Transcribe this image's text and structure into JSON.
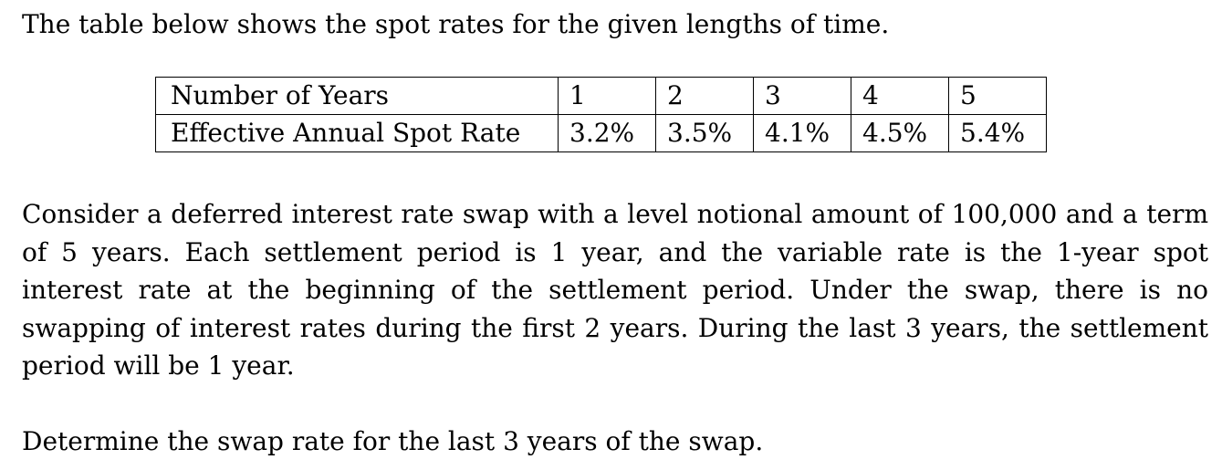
{
  "intro": "The table below shows the spot rates for the given lengths of time.",
  "table": {
    "row_years_label": "Number of Years",
    "years": [
      "1",
      "2",
      "3",
      "4",
      "5"
    ],
    "row_rates_label": "Effective Annual Spot Rate",
    "rates": [
      "3.2%",
      "3.5%",
      "4.1%",
      "4.5%",
      "5.4%"
    ]
  },
  "scenario": "Consider a deferred interest rate swap with a level notional amount of 100,000 and a term of 5 years. Each settlement period is 1 year, and the variable rate is the 1-year spot interest rate at the beginning of the settlement period. Under the swap, there is no swapping of interest rates during the first 2 years. During the last 3 years, the settlement period will be 1 year.",
  "question": "Determine the swap rate for the last 3 years of the swap."
}
